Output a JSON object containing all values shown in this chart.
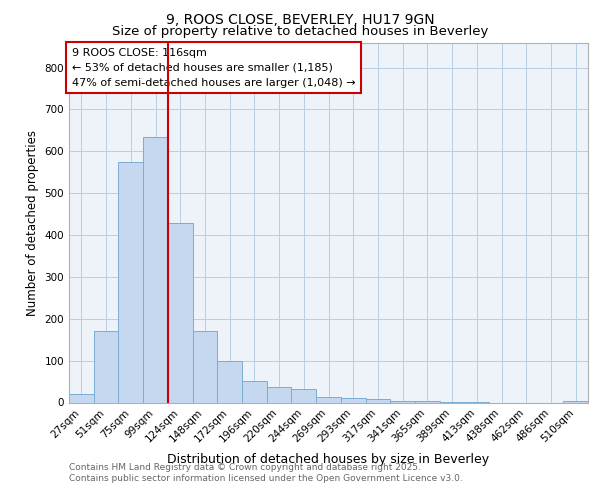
{
  "title1": "9, ROOS CLOSE, BEVERLEY, HU17 9GN",
  "title2": "Size of property relative to detached houses in Beverley",
  "xlabel": "Distribution of detached houses by size in Beverley",
  "ylabel": "Number of detached properties",
  "categories": [
    "27sqm",
    "51sqm",
    "75sqm",
    "99sqm",
    "124sqm",
    "148sqm",
    "172sqm",
    "196sqm",
    "220sqm",
    "244sqm",
    "269sqm",
    "293sqm",
    "317sqm",
    "341sqm",
    "365sqm",
    "389sqm",
    "413sqm",
    "438sqm",
    "462sqm",
    "486sqm",
    "510sqm"
  ],
  "values": [
    20,
    170,
    575,
    635,
    430,
    170,
    100,
    52,
    38,
    32,
    14,
    10,
    8,
    4,
    3,
    2,
    1,
    0,
    0,
    0,
    4
  ],
  "bar_color": "#c5d8f0",
  "bar_edge_color": "#7aadd4",
  "red_line_x": 3.5,
  "annotation_title": "9 ROOS CLOSE: 116sqm",
  "annotation_line1": "← 53% of detached houses are smaller (1,185)",
  "annotation_line2": "47% of semi-detached houses are larger (1,048) →",
  "annotation_box_color": "#ffffff",
  "annotation_box_edge_color": "#cc0000",
  "ylim": [
    0,
    860
  ],
  "yticks": [
    0,
    100,
    200,
    300,
    400,
    500,
    600,
    700,
    800
  ],
  "footnote1": "Contains HM Land Registry data © Crown copyright and database right 2025.",
  "footnote2": "Contains public sector information licensed under the Open Government Licence v3.0.",
  "plot_bg_color": "#eef3f9",
  "title1_fontsize": 10,
  "title2_fontsize": 9.5,
  "tick_fontsize": 7.5,
  "ylabel_fontsize": 8.5,
  "xlabel_fontsize": 9
}
